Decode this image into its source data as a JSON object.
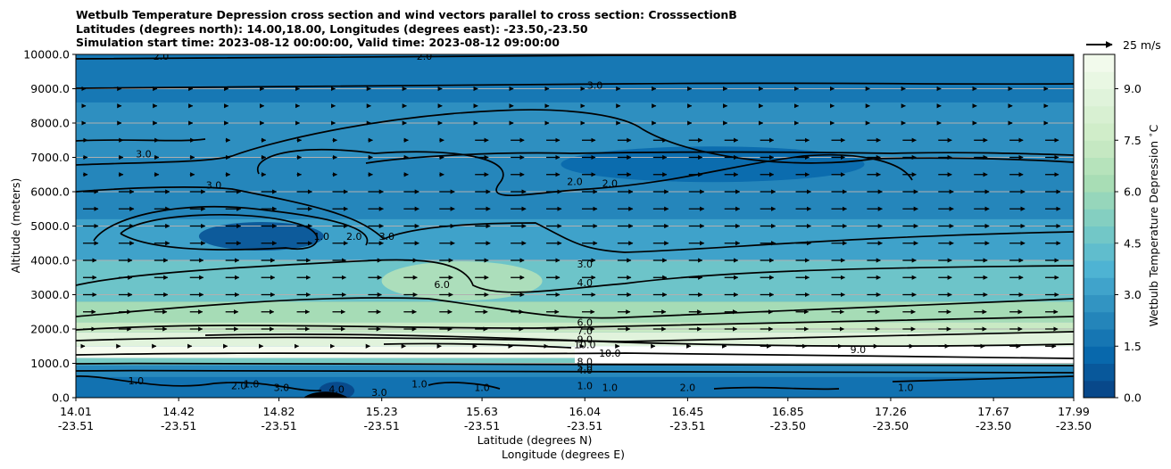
{
  "chart_data": {
    "type": "contourf-crosssection",
    "title_lines": [
      "Wetbulb Temperature Depression cross section and wind vectors parallel to cross section: CrosssectionB",
      "Latitudes (degrees north): 14.00,18.00, Longitudes (degrees east): -23.50,-23.50",
      "Simulation start time: 2023-08-12 00:00:00, Valid time: 2023-08-12 09:00:00"
    ],
    "ylabel": "Altitude (meters)",
    "xlabel_lat": "Latitude (degrees N)",
    "xlabel_lon": "Longitude (degrees E)",
    "ylim": [
      0,
      10000
    ],
    "y_ticks": [
      "0.0",
      "1000.0",
      "2000.0",
      "3000.0",
      "4000.0",
      "5000.0",
      "6000.0",
      "7000.0",
      "8000.0",
      "9000.0",
      "10000.0"
    ],
    "y_tick_values": [
      0,
      1000,
      2000,
      3000,
      4000,
      5000,
      6000,
      7000,
      8000,
      9000,
      10000
    ],
    "x_ticks_lat": [
      "14.01",
      "14.42",
      "14.82",
      "15.23",
      "15.63",
      "16.04",
      "16.45",
      "16.85",
      "17.26",
      "17.67",
      "17.99"
    ],
    "x_ticks_lon": [
      "-23.51",
      "-23.51",
      "-23.51",
      "-23.51",
      "-23.51",
      "-23.51",
      "-23.51",
      "-23.50",
      "-23.50",
      "-23.50",
      "-23.50"
    ],
    "colorbar": {
      "label": "Wetbulb Temperature Depression $^\\circ$C",
      "range": [
        0,
        10
      ],
      "ticks": [
        "0.0",
        "1.5",
        "3.0",
        "4.5",
        "6.0",
        "7.5",
        "9.0"
      ],
      "tick_values": [
        0,
        1.5,
        3.0,
        4.5,
        6.0,
        7.5,
        9.0
      ],
      "levels": 20,
      "colormap": [
        "#084081",
        "#0868ac",
        "#2b8cbe",
        "#4eb3d3",
        "#7bccc4",
        "#a8ddb5",
        "#ccebc5",
        "#e0f3db",
        "#f7fcf0"
      ]
    },
    "wind_key": "25 m/s",
    "contour_labels": [
      {
        "text": "2.0",
        "lat": 14.35,
        "alt": 9950
      },
      {
        "text": "2.0",
        "lat": 15.4,
        "alt": 9950
      },
      {
        "text": "3.0",
        "lat": 16.08,
        "alt": 9100
      },
      {
        "text": "3.0",
        "lat": 14.28,
        "alt": 7100
      },
      {
        "text": "3.0",
        "lat": 14.56,
        "alt": 6200
      },
      {
        "text": "2.0",
        "lat": 16.0,
        "alt": 6300
      },
      {
        "text": "2.0",
        "lat": 16.14,
        "alt": 6250
      },
      {
        "text": "1.0",
        "lat": 14.99,
        "alt": 4700
      },
      {
        "text": "2.0",
        "lat": 15.12,
        "alt": 4700
      },
      {
        "text": "3.0",
        "lat": 15.25,
        "alt": 4700
      },
      {
        "text": "3.0",
        "lat": 16.04,
        "alt": 3900
      },
      {
        "text": "4.0",
        "lat": 16.04,
        "alt": 3350
      },
      {
        "text": "6.0",
        "lat": 15.47,
        "alt": 3300
      },
      {
        "text": "6.0",
        "lat": 16.04,
        "alt": 2200
      },
      {
        "text": "7.0",
        "lat": 16.04,
        "alt": 1950
      },
      {
        "text": "9.0",
        "lat": 16.04,
        "alt": 1700
      },
      {
        "text": "10.0",
        "lat": 16.04,
        "alt": 1550
      },
      {
        "text": "10.0",
        "lat": 16.14,
        "alt": 1300
      },
      {
        "text": "9.0",
        "lat": 17.13,
        "alt": 1400
      },
      {
        "text": "8.0",
        "lat": 16.04,
        "alt": 1050
      },
      {
        "text": "5.0",
        "lat": 16.04,
        "alt": 900
      },
      {
        "text": "4.0",
        "lat": 16.04,
        "alt": 800
      },
      {
        "text": "1.0",
        "lat": 14.25,
        "alt": 500
      },
      {
        "text": "1.0",
        "lat": 14.71,
        "alt": 400
      },
      {
        "text": "2.0",
        "lat": 14.66,
        "alt": 350
      },
      {
        "text": "3.0",
        "lat": 14.83,
        "alt": 300
      },
      {
        "text": "4.0",
        "lat": 15.05,
        "alt": 250
      },
      {
        "text": "3.0",
        "lat": 15.22,
        "alt": 150
      },
      {
        "text": "1.0",
        "lat": 15.38,
        "alt": 400
      },
      {
        "text": "1.0",
        "lat": 15.63,
        "alt": 300
      },
      {
        "text": "1.0",
        "lat": 16.04,
        "alt": 350
      },
      {
        "text": "1.0",
        "lat": 16.14,
        "alt": 300
      },
      {
        "text": "2.0",
        "lat": 16.45,
        "alt": 300
      },
      {
        "text": "1.0",
        "lat": 17.32,
        "alt": 300
      }
    ]
  }
}
